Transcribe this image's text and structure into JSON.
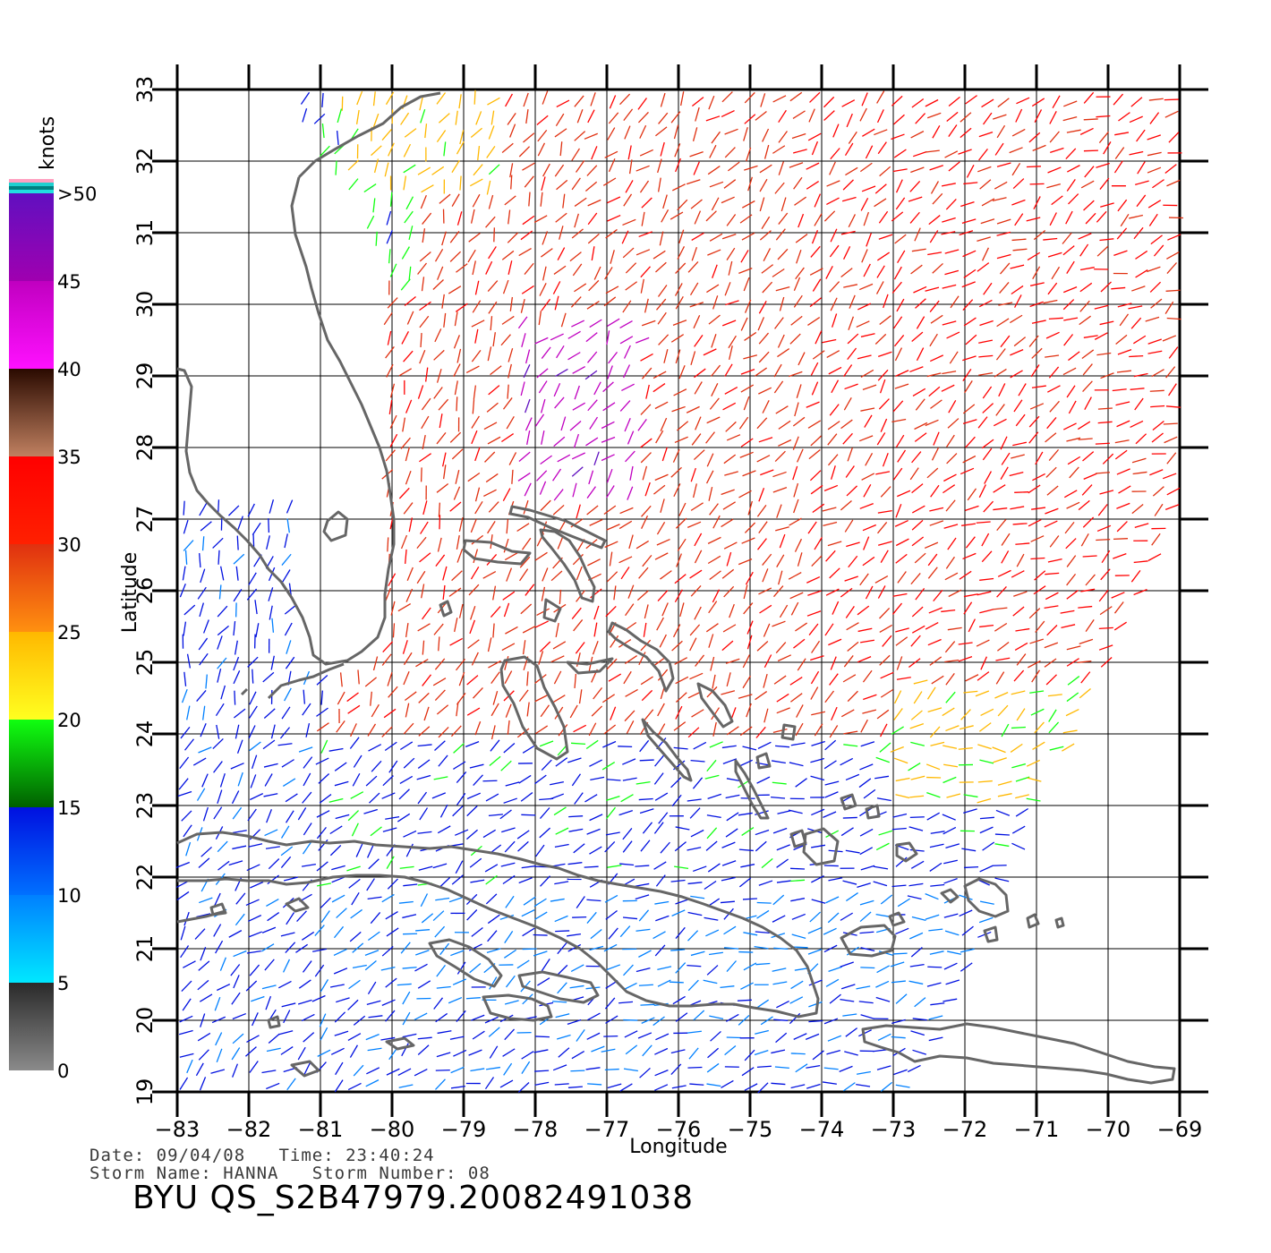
{
  "colorbar": {
    "unit_label": "knots",
    "ticks": [
      "0",
      "5",
      "10",
      "15",
      "20",
      "25",
      "30",
      "35",
      "40",
      "45",
      ">50"
    ],
    "bands": [
      {
        "from": 0,
        "to": 5,
        "colors": [
          "#8a8a8a",
          "#2a2a2a"
        ]
      },
      {
        "from": 5,
        "to": 10,
        "colors": [
          "#00e8ff",
          "#0080ff"
        ]
      },
      {
        "from": 10,
        "to": 15,
        "colors": [
          "#0070ff",
          "#0010e0"
        ]
      },
      {
        "from": 15,
        "to": 20,
        "colors": [
          "#006000",
          "#10ff10"
        ]
      },
      {
        "from": 20,
        "to": 25,
        "colors": [
          "#ffff20",
          "#ffb800"
        ]
      },
      {
        "from": 25,
        "to": 30,
        "colors": [
          "#ff9010",
          "#e03010"
        ]
      },
      {
        "from": 30,
        "to": 35,
        "colors": [
          "#ff2000",
          "#ff0000"
        ]
      },
      {
        "from": 35,
        "to": 40,
        "colors": [
          "#c08060",
          "#2a0a00"
        ]
      },
      {
        "from": 40,
        "to": 45,
        "colors": [
          "#ff10ff",
          "#c000c0"
        ]
      },
      {
        "from": 45,
        "to": 50,
        "colors": [
          "#a000b0",
          "#6010c0"
        ]
      }
    ],
    "cap_colors": [
      "#ffa0c0",
      "#20d0d0",
      "#008080",
      "#20e0e0"
    ]
  },
  "map": {
    "lon_range": [
      -83,
      -69
    ],
    "lat_range": [
      19,
      33
    ],
    "lon_ticks": [
      "-83",
      "-82",
      "-81",
      "-80",
      "-79",
      "-78",
      "-77",
      "-76",
      "-75",
      "-74",
      "-73",
      "-72",
      "-71",
      "-70",
      "-69"
    ],
    "lat_ticks": [
      "19",
      "20",
      "21",
      "22",
      "23",
      "24",
      "25",
      "26",
      "27",
      "28",
      "29",
      "30",
      "31",
      "32",
      "33"
    ],
    "xlabel": "Longitude",
    "ylabel": "Latitude"
  },
  "footer": {
    "date_line": "Date: 09/04/08   Time: 23:40:24",
    "storm_line": "Storm Name: HANNA   Storm Number: 08",
    "product_id": "BYU QS_S2B47979.20082491038"
  }
}
